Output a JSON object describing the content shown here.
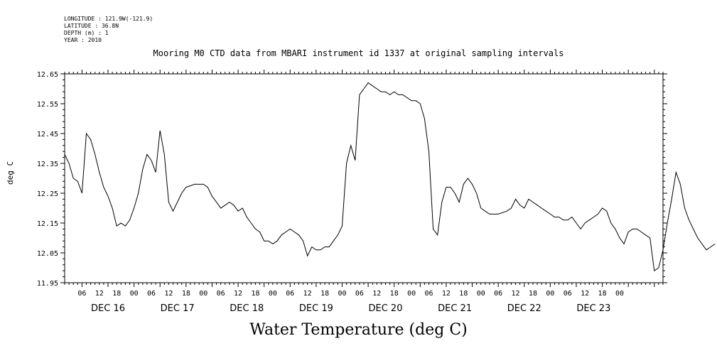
{
  "header": {
    "longitude": "LONGITUDE : 121.9W(-121.9)",
    "latitude": "LATITUDE : 36.8N",
    "depth": "DEPTH (m) : 1",
    "year": "YEAR : 2010"
  },
  "chart_data": {
    "type": "line",
    "title": "Mooring M0 CTD data from MBARI instrument id 1337 at original sampling intervals",
    "xlabel": "Water Temperature (deg C)",
    "ylabel": "deg C",
    "ylim": [
      11.95,
      12.65
    ],
    "y_ticks": [
      "12.65",
      "12.55",
      "12.45",
      "12.35",
      "12.25",
      "12.15",
      "12.05",
      "11.95"
    ],
    "x_range_hours": [
      -10,
      128
    ],
    "hour_ticks": [
      "06",
      "12",
      "18",
      "00",
      "06",
      "12",
      "18",
      "00",
      "06",
      "12",
      "18",
      "00",
      "06",
      "12",
      "18",
      "00",
      "06",
      "12",
      "18",
      "00",
      "06",
      "12",
      "18",
      "00",
      "06",
      "12",
      "18",
      "00",
      "06",
      "12",
      "18",
      "00"
    ],
    "day_labels": [
      "DEC 16",
      "DEC 17",
      "DEC 18",
      "DEC 19",
      "DEC 20",
      "DEC 21",
      "DEC 22",
      "DEC 23"
    ],
    "series": [
      {
        "values": [
          [
            -10,
            12.38
          ],
          [
            -9,
            12.35
          ],
          [
            -8,
            12.3
          ],
          [
            -7,
            12.29
          ],
          [
            -6,
            12.25
          ],
          [
            -5,
            12.45
          ],
          [
            -4,
            12.43
          ],
          [
            -3,
            12.38
          ],
          [
            -2,
            12.32
          ],
          [
            -1,
            12.27
          ],
          [
            0,
            12.24
          ],
          [
            1,
            12.2
          ],
          [
            2,
            12.14
          ],
          [
            3,
            12.15
          ],
          [
            4,
            12.14
          ],
          [
            5,
            12.16
          ],
          [
            6,
            12.2
          ],
          [
            7,
            12.25
          ],
          [
            8,
            12.33
          ],
          [
            9,
            12.38
          ],
          [
            10,
            12.36
          ],
          [
            11,
            12.32
          ],
          [
            12,
            12.46
          ],
          [
            13,
            12.38
          ],
          [
            14,
            12.22
          ],
          [
            15,
            12.19
          ],
          [
            16,
            12.22
          ],
          [
            17,
            12.25
          ],
          [
            18,
            12.27
          ],
          [
            20,
            12.28
          ],
          [
            22,
            12.28
          ],
          [
            23,
            12.27
          ],
          [
            24,
            12.24
          ],
          [
            25,
            12.22
          ],
          [
            26,
            12.2
          ],
          [
            27,
            12.21
          ],
          [
            28,
            12.22
          ],
          [
            29,
            12.21
          ],
          [
            30,
            12.19
          ],
          [
            31,
            12.2
          ],
          [
            32,
            12.17
          ],
          [
            33,
            12.15
          ],
          [
            34,
            12.13
          ],
          [
            35,
            12.12
          ],
          [
            36,
            12.09
          ],
          [
            37,
            12.09
          ],
          [
            38,
            12.08
          ],
          [
            39,
            12.09
          ],
          [
            40,
            12.11
          ],
          [
            41,
            12.12
          ],
          [
            42,
            12.13
          ],
          [
            43,
            12.12
          ],
          [
            44,
            12.11
          ],
          [
            45,
            12.09
          ],
          [
            46,
            12.04
          ],
          [
            47,
            12.07
          ],
          [
            48,
            12.06
          ],
          [
            49,
            12.06
          ],
          [
            50,
            12.07
          ],
          [
            51,
            12.07
          ],
          [
            52,
            12.09
          ],
          [
            53,
            12.11
          ],
          [
            54,
            12.14
          ],
          [
            55,
            12.35
          ],
          [
            56,
            12.41
          ],
          [
            57,
            12.36
          ],
          [
            58,
            12.58
          ],
          [
            59,
            12.6
          ],
          [
            60,
            12.62
          ],
          [
            61,
            12.61
          ],
          [
            62,
            12.6
          ],
          [
            63,
            12.59
          ],
          [
            64,
            12.59
          ],
          [
            65,
            12.58
          ],
          [
            66,
            12.59
          ],
          [
            67,
            12.58
          ],
          [
            68,
            12.58
          ],
          [
            69,
            12.57
          ],
          [
            70,
            12.56
          ],
          [
            71,
            12.56
          ],
          [
            72,
            12.55
          ],
          [
            73,
            12.5
          ],
          [
            74,
            12.39
          ],
          [
            75,
            12.13
          ],
          [
            76,
            12.11
          ],
          [
            77,
            12.22
          ],
          [
            78,
            12.27
          ],
          [
            79,
            12.27
          ],
          [
            80,
            12.25
          ],
          [
            81,
            12.22
          ],
          [
            82,
            12.28
          ],
          [
            83,
            12.3
          ],
          [
            84,
            12.28
          ],
          [
            85,
            12.25
          ],
          [
            86,
            12.2
          ],
          [
            87,
            12.19
          ],
          [
            88,
            12.18
          ],
          [
            90,
            12.18
          ],
          [
            92,
            12.19
          ],
          [
            93,
            12.2
          ],
          [
            94,
            12.23
          ],
          [
            95,
            12.21
          ],
          [
            96,
            12.2
          ],
          [
            97,
            12.23
          ],
          [
            98,
            12.22
          ],
          [
            99,
            12.21
          ],
          [
            100,
            12.2
          ],
          [
            101,
            12.19
          ],
          [
            102,
            12.18
          ],
          [
            103,
            12.17
          ],
          [
            104,
            12.17
          ],
          [
            105,
            12.16
          ],
          [
            106,
            12.16
          ],
          [
            107,
            12.17
          ],
          [
            108,
            12.15
          ],
          [
            109,
            12.13
          ],
          [
            110,
            12.15
          ],
          [
            111,
            12.16
          ],
          [
            112,
            12.17
          ],
          [
            113,
            12.18
          ],
          [
            114,
            12.2
          ],
          [
            115,
            12.19
          ],
          [
            116,
            12.15
          ],
          [
            117,
            12.13
          ],
          [
            118,
            12.1
          ],
          [
            119,
            12.08
          ],
          [
            120,
            12.12
          ],
          [
            121,
            12.13
          ],
          [
            122,
            12.13
          ],
          [
            123,
            12.12
          ],
          [
            124,
            12.11
          ],
          [
            125,
            12.1
          ],
          [
            126,
            11.99
          ],
          [
            127,
            12.0
          ],
          [
            128,
            12.06
          ],
          [
            129,
            12.15
          ],
          [
            130,
            12.23
          ],
          [
            131,
            12.32
          ],
          [
            132,
            12.28
          ],
          [
            133,
            12.2
          ],
          [
            134,
            12.16
          ],
          [
            135,
            12.13
          ],
          [
            136,
            12.1
          ],
          [
            137,
            12.08
          ],
          [
            138,
            12.06
          ],
          [
            139,
            12.07
          ],
          [
            140,
            12.08
          ]
        ]
      }
    ]
  }
}
